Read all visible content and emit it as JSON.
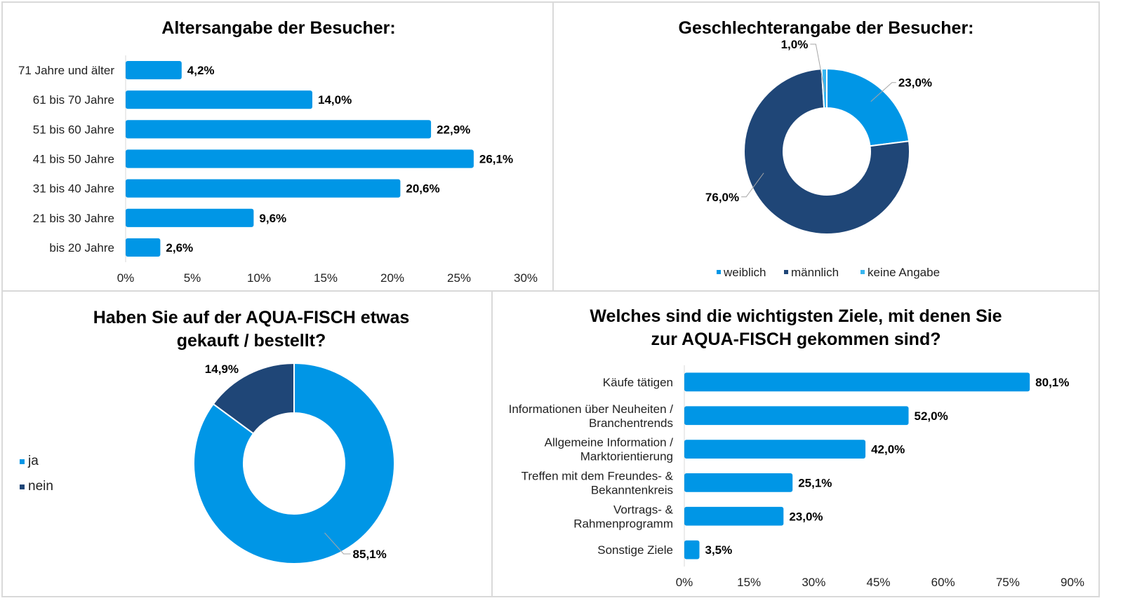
{
  "colors": {
    "bar": "#0096e6",
    "weiblich": "#0096e6",
    "maennlich": "#1f4677",
    "keine_angabe": "#39b6f0",
    "ja": "#0096e6",
    "nein": "#1f4677",
    "leader": "#a6a6a6",
    "axis": "#d9d9d9"
  },
  "chart_data": [
    {
      "id": "age",
      "type": "bar",
      "orientation": "horizontal",
      "title": "Altersangabe der Besucher:",
      "categories": [
        "71 Jahre und älter",
        "61 bis 70 Jahre",
        "51 bis 60 Jahre",
        "41 bis 50 Jahre",
        "31 bis 40 Jahre",
        "21 bis 30 Jahre",
        "bis 20 Jahre"
      ],
      "values": [
        4.2,
        14.0,
        22.9,
        26.1,
        20.6,
        9.6,
        2.6
      ],
      "value_labels": [
        "4,2%",
        "14,0%",
        "22,9%",
        "26,1%",
        "20,6%",
        "9,6%",
        "2,6%"
      ],
      "xlim": [
        0,
        30
      ],
      "xticks": [
        0,
        5,
        10,
        15,
        20,
        25,
        30
      ],
      "xtick_labels": [
        "0%",
        "5%",
        "10%",
        "15%",
        "20%",
        "25%",
        "30%"
      ],
      "xlabel": "",
      "ylabel": "",
      "grid": false
    },
    {
      "id": "gender",
      "type": "pie",
      "donut": true,
      "title": "Geschlechterangabe der Besucher:",
      "labels": [
        "weiblich",
        "männlich",
        "keine Angabe"
      ],
      "values": [
        23.0,
        76.0,
        1.0
      ],
      "value_labels": [
        "23,0%",
        "76,0%",
        "1,0%"
      ],
      "legend": "bottom"
    },
    {
      "id": "purchase",
      "type": "pie",
      "donut": true,
      "title": "Haben Sie auf der AQUA-FISCH etwas gekauft / bestellt?",
      "title_lines": [
        "Haben Sie auf der AQUA-FISCH etwas",
        "gekauft / bestellt?"
      ],
      "labels": [
        "ja",
        "nein"
      ],
      "values": [
        85.1,
        14.9
      ],
      "value_labels": [
        "85,1%",
        "14,9%"
      ],
      "legend": "left"
    },
    {
      "id": "goals",
      "type": "bar",
      "orientation": "horizontal",
      "title": "Welches sind die wichtigsten Ziele, mit denen Sie zur AQUA-FISCH gekommen sind?",
      "title_lines": [
        "Welches sind die wichtigsten Ziele, mit denen Sie",
        "zur AQUA-FISCH gekommen sind?"
      ],
      "categories": [
        "Käufe tätigen",
        "Informationen über Neuheiten / Branchentrends",
        "Allgemeine Information / Marktorientierung",
        "Treffen mit dem Freundes- & Bekanntenkreis",
        "Vortrags- & Rahmenprogramm",
        "Sonstige Ziele"
      ],
      "category_lines": [
        [
          "Käufe tätigen"
        ],
        [
          "Informationen über Neuheiten /",
          "Branchentrends"
        ],
        [
          "Allgemeine Information /",
          "Marktorientierung"
        ],
        [
          "Treffen mit dem Freundes- &",
          "Bekanntenkreis"
        ],
        [
          "Vortrags- &",
          "Rahmenprogramm"
        ],
        [
          "Sonstige Ziele"
        ]
      ],
      "values": [
        80.1,
        52.0,
        42.0,
        25.1,
        23.0,
        3.5
      ],
      "value_labels": [
        "80,1%",
        "52,0%",
        "42,0%",
        "25,1%",
        "23,0%",
        "3,5%"
      ],
      "xlim": [
        0,
        90
      ],
      "xticks": [
        0,
        15,
        30,
        45,
        60,
        75,
        90
      ],
      "xtick_labels": [
        "0%",
        "15%",
        "30%",
        "45%",
        "60%",
        "75%",
        "90%"
      ],
      "xlabel": "",
      "ylabel": "",
      "grid": false
    }
  ]
}
